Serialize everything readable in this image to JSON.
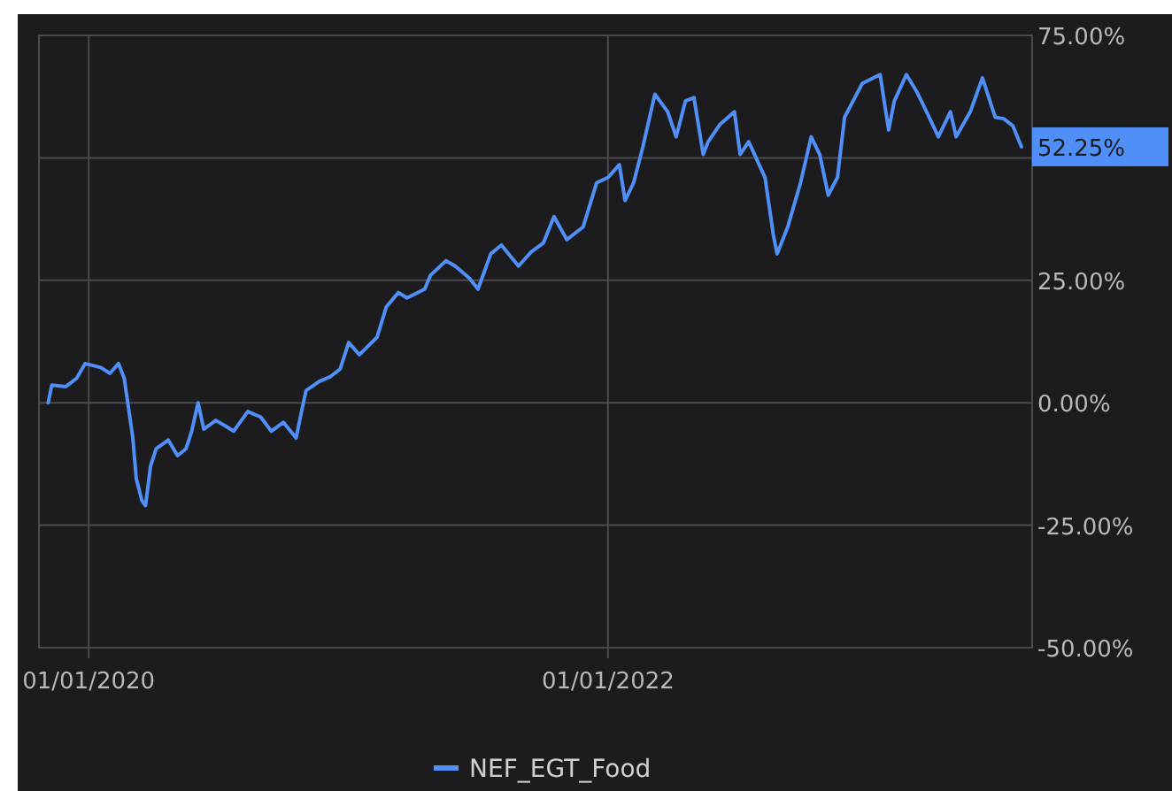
{
  "chart_data": {
    "type": "line",
    "x": [
      "2019-11-05",
      "2019-11-10",
      "2019-11-30",
      "2019-12-15",
      "2019-12-27",
      "2020-01-18",
      "2020-01-31",
      "2020-02-12",
      "2020-02-20",
      "2020-02-27",
      "2020-03-03",
      "2020-03-08",
      "2020-03-16",
      "2020-03-21",
      "2020-03-28",
      "2020-04-05",
      "2020-04-22",
      "2020-05-05",
      "2020-05-17",
      "2020-05-25",
      "2020-06-03",
      "2020-06-11",
      "2020-06-28",
      "2020-07-11",
      "2020-07-23",
      "2020-08-12",
      "2020-08-30",
      "2020-09-14",
      "2020-10-01",
      "2020-10-19",
      "2020-10-26",
      "2020-11-02",
      "2020-11-20",
      "2020-12-07",
      "2020-12-20",
      "2021-01-01",
      "2021-01-16",
      "2021-02-10",
      "2021-02-23",
      "2021-03-12",
      "2021-03-24",
      "2021-04-18",
      "2021-04-26",
      "2021-05-18",
      "2021-05-31",
      "2021-06-20",
      "2021-07-02",
      "2021-07-20",
      "2021-08-04",
      "2021-08-28",
      "2021-09-15",
      "2021-10-02",
      "2021-10-17",
      "2021-11-04",
      "2021-11-27",
      "2021-12-16",
      "2022-01-01",
      "2022-01-17",
      "2022-01-25",
      "2022-02-06",
      "2022-02-19",
      "2022-03-08",
      "2022-03-26",
      "2022-04-07",
      "2022-04-20",
      "2022-05-02",
      "2022-05-15",
      "2022-05-22",
      "2022-06-08",
      "2022-06-28",
      "2022-07-06",
      "2022-07-18",
      "2022-08-10",
      "2022-08-22",
      "2022-08-27",
      "2022-09-11",
      "2022-09-29",
      "2022-10-14",
      "2022-10-26",
      "2022-11-07",
      "2022-11-20",
      "2022-11-30",
      "2022-12-12",
      "2022-12-25",
      "2023-01-19",
      "2023-01-31",
      "2023-02-08",
      "2023-02-25",
      "2023-03-12",
      "2023-03-29",
      "2023-04-11",
      "2023-04-28",
      "2023-05-06",
      "2023-05-26",
      "2023-06-12",
      "2023-06-30",
      "2023-07-12",
      "2023-07-25",
      "2023-08-06"
    ],
    "series": [
      {
        "name": "NEF_EGT_Food",
        "color": "#4f8ff7",
        "values": [
          0,
          3.6,
          3.3,
          5,
          8,
          7.2,
          6,
          8,
          5,
          -2,
          -7,
          -15.5,
          -20,
          -21,
          -13,
          -9.4,
          -7.6,
          -10.8,
          -9.4,
          -5.8,
          0,
          -5.4,
          -3.6,
          -4.7,
          -5.8,
          -1.8,
          -2.9,
          -5.8,
          -4,
          -7.2,
          -2.2,
          2.5,
          4.3,
          5.4,
          6.9,
          12.3,
          9.8,
          13.4,
          19.6,
          22.5,
          21.4,
          23.2,
          26,
          29,
          27.9,
          25.4,
          23.2,
          30.4,
          32.2,
          27.9,
          30.8,
          32.6,
          38,
          33.3,
          35.9,
          44.9,
          46,
          48.6,
          41.3,
          44.9,
          52.2,
          63,
          59.4,
          54.3,
          61.6,
          62.3,
          50.7,
          53.3,
          56.9,
          59.4,
          50.7,
          53.3,
          46,
          34,
          30.4,
          35.9,
          44.9,
          54.3,
          50.7,
          42.4,
          46,
          58.3,
          61.6,
          65.2,
          67,
          55.7,
          61.6,
          67,
          63.4,
          58.3,
          54.3,
          59.4,
          54.3,
          59.4,
          66.3,
          58.3,
          58,
          56.5,
          52.25
        ]
      }
    ],
    "xlim": [
      "2019-10-23",
      "2023-08-21"
    ],
    "xticks": [
      {
        "value": "2020-01-01",
        "label": "01/01/2020"
      },
      {
        "value": "2022-01-01",
        "label": "01/01/2022"
      }
    ],
    "ylim": [
      -50,
      75
    ],
    "yticks": [
      {
        "value": -50,
        "label": "-50.00%"
      },
      {
        "value": -25,
        "label": "-25.00%"
      },
      {
        "value": 0,
        "label": "0.00%"
      },
      {
        "value": 25,
        "label": "25.00%"
      },
      {
        "value": 50,
        "label": null
      },
      {
        "value": 75,
        "label": "75.00%"
      }
    ],
    "annotations": [
      {
        "text": "52.25%",
        "x": "2023-08-06",
        "y": 52.25
      }
    ],
    "grid": true,
    "legend": "bottom",
    "marker": "none",
    "line_style": "solid"
  }
}
